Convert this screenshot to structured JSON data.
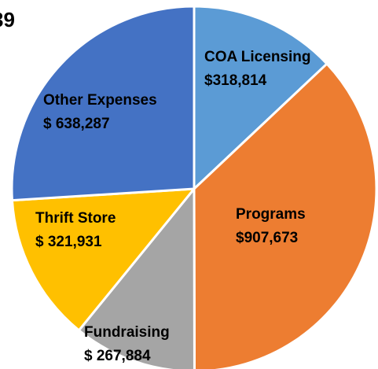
{
  "chart_data": {
    "type": "pie",
    "title": "39",
    "categories": [
      "COA Licensing",
      "Programs",
      "Fundraising",
      "Thrift Store",
      "Other Expenses"
    ],
    "values": [
      318814,
      907673,
      267884,
      321931,
      638287
    ],
    "value_labels": [
      "$318,814",
      "$907,673",
      "$ 267,884",
      "$ 321,931",
      "$ 638,287"
    ],
    "colors": [
      "#5b9bd5",
      "#ed7d31",
      "#a5a5a5",
      "#ffc000",
      "#4472c4"
    ]
  }
}
